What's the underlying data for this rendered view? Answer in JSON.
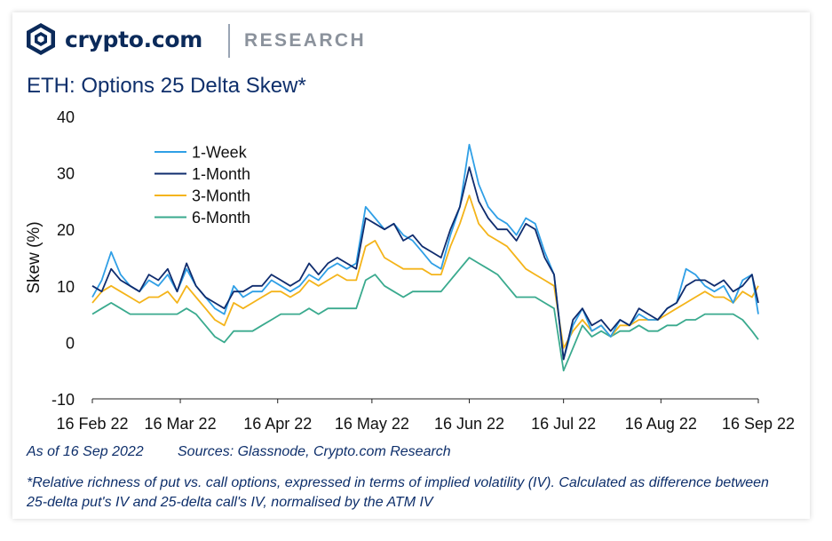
{
  "header": {
    "brand_name": "crypto.com",
    "section_label": "RESEARCH",
    "logo_icon": "crypto-com-lion-shield-icon"
  },
  "chart_data": {
    "type": "line",
    "title": "ETH: Options 25 Delta Skew*",
    "xlabel": "",
    "ylabel": "Skew (%)",
    "ylim": [
      -10,
      40
    ],
    "yticks": [
      -10,
      0,
      10,
      20,
      30,
      40
    ],
    "xlim": [
      "2022-02-16",
      "2022-09-16"
    ],
    "xticks": [
      {
        "date": "2022-02-16",
        "label": "16 Feb 22"
      },
      {
        "date": "2022-03-16",
        "label": "16 Mar 22"
      },
      {
        "date": "2022-04-16",
        "label": "16 Apr 22"
      },
      {
        "date": "2022-05-16",
        "label": "16 May 22"
      },
      {
        "date": "2022-06-16",
        "label": "16 Jun 22"
      },
      {
        "date": "2022-07-16",
        "label": "16 Jul 22"
      },
      {
        "date": "2022-08-16",
        "label": "16 Aug 22"
      },
      {
        "date": "2022-09-16",
        "label": "16 Sep 22"
      }
    ],
    "grid": false,
    "legend_position": "top-left",
    "x": [
      "2022-02-16",
      "2022-02-19",
      "2022-02-22",
      "2022-02-25",
      "2022-02-28",
      "2022-03-03",
      "2022-03-06",
      "2022-03-09",
      "2022-03-12",
      "2022-03-15",
      "2022-03-18",
      "2022-03-21",
      "2022-03-24",
      "2022-03-27",
      "2022-03-30",
      "2022-04-02",
      "2022-04-05",
      "2022-04-08",
      "2022-04-11",
      "2022-04-14",
      "2022-04-17",
      "2022-04-20",
      "2022-04-23",
      "2022-04-26",
      "2022-04-29",
      "2022-05-02",
      "2022-05-05",
      "2022-05-08",
      "2022-05-11",
      "2022-05-14",
      "2022-05-17",
      "2022-05-20",
      "2022-05-23",
      "2022-05-26",
      "2022-05-29",
      "2022-06-01",
      "2022-06-04",
      "2022-06-07",
      "2022-06-10",
      "2022-06-13",
      "2022-06-16",
      "2022-06-19",
      "2022-06-22",
      "2022-06-25",
      "2022-06-28",
      "2022-07-01",
      "2022-07-04",
      "2022-07-07",
      "2022-07-10",
      "2022-07-13",
      "2022-07-16",
      "2022-07-19",
      "2022-07-22",
      "2022-07-25",
      "2022-07-28",
      "2022-07-31",
      "2022-08-03",
      "2022-08-06",
      "2022-08-09",
      "2022-08-12",
      "2022-08-15",
      "2022-08-18",
      "2022-08-21",
      "2022-08-24",
      "2022-08-27",
      "2022-08-30",
      "2022-09-02",
      "2022-09-05",
      "2022-09-08",
      "2022-09-11",
      "2022-09-14",
      "2022-09-16"
    ],
    "series": [
      {
        "name": "1-Week",
        "color": "#2f9fe6",
        "values": [
          8,
          11,
          16,
          12,
          10,
          9,
          11,
          10,
          12,
          9,
          13,
          10,
          8,
          6,
          5,
          10,
          8,
          9,
          9,
          11,
          10,
          9,
          10,
          12,
          11,
          13,
          14,
          13,
          14,
          24,
          22,
          20,
          21,
          19,
          18,
          16,
          14,
          13,
          19,
          24,
          35,
          28,
          24,
          22,
          21,
          19,
          22,
          21,
          16,
          12,
          -3,
          3,
          6,
          2,
          3,
          1,
          4,
          3,
          5,
          4,
          4,
          6,
          7,
          13,
          12,
          10,
          9,
          10,
          7,
          11,
          12,
          5
        ]
      },
      {
        "name": "1-Month",
        "color": "#0f2c6e",
        "values": [
          10,
          9,
          13,
          11,
          10,
          9,
          12,
          11,
          13,
          9,
          14,
          10,
          8,
          7,
          6,
          9,
          9,
          10,
          10,
          12,
          11,
          10,
          11,
          14,
          12,
          14,
          15,
          14,
          13,
          22,
          21,
          20,
          21,
          18,
          19,
          17,
          16,
          15,
          20,
          24,
          31,
          25,
          22,
          20,
          20,
          18,
          21,
          20,
          15,
          12,
          -3,
          4,
          6,
          3,
          4,
          2,
          4,
          3,
          6,
          5,
          4,
          6,
          7,
          10,
          11,
          11,
          10,
          11,
          9,
          10,
          12,
          7
        ]
      },
      {
        "name": "3-Month",
        "color": "#f4b41a",
        "values": [
          7,
          9,
          10,
          9,
          8,
          7,
          8,
          8,
          9,
          7,
          10,
          8,
          6,
          4,
          3,
          7,
          6,
          7,
          8,
          9,
          9,
          8,
          9,
          11,
          10,
          11,
          12,
          11,
          11,
          17,
          18,
          15,
          14,
          13,
          13,
          13,
          12,
          12,
          17,
          21,
          26,
          21,
          19,
          18,
          17,
          15,
          13,
          12,
          11,
          10,
          -1,
          2,
          4,
          2,
          3,
          1,
          3,
          3,
          4,
          4,
          4,
          5,
          6,
          7,
          8,
          9,
          8,
          8,
          7,
          9,
          8,
          10
        ]
      },
      {
        "name": "6-Month",
        "color": "#3aaa8e",
        "values": [
          5,
          6,
          7,
          6,
          5,
          5,
          5,
          5,
          5,
          5,
          6,
          5,
          3,
          1,
          0,
          2,
          2,
          2,
          3,
          4,
          5,
          5,
          5,
          6,
          5,
          6,
          6,
          6,
          6,
          11,
          12,
          10,
          9,
          8,
          9,
          9,
          9,
          9,
          11,
          13,
          15,
          14,
          13,
          12,
          10,
          8,
          8,
          8,
          7,
          6,
          -5,
          -1,
          3,
          1,
          2,
          1,
          2,
          2,
          3,
          2,
          2,
          3,
          3,
          4,
          4,
          5,
          5,
          5,
          5,
          4,
          2,
          0.5
        ]
      }
    ]
  },
  "footer": {
    "as_of": "As of 16 Sep 2022",
    "sources": "Sources: Glassnode, Crypto.com Research",
    "note": "*Relative richness of put vs. call options, expressed in terms of implied volatility (IV). Calculated as difference between 25-delta put's IV and 25-delta call's IV, normalised by the ATM IV"
  }
}
